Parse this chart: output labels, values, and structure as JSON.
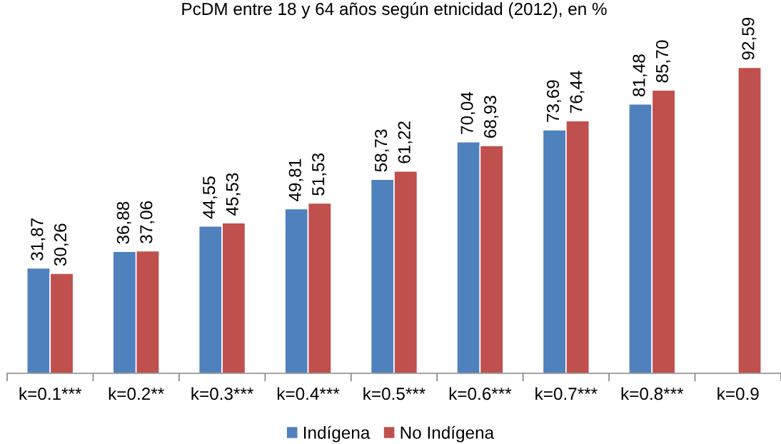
{
  "chart_data": {
    "type": "bar",
    "title": "PcDM entre 18 y 64 años según etnicidad (2012), en %",
    "categories": [
      "k=0.1***",
      "k=0.2**",
      "k=0.3***",
      "k=0.4***",
      "k=0.5***",
      "k=0.6***",
      "k=0.7***",
      "k=0.8***",
      "k=0.9"
    ],
    "series": [
      {
        "name": "Indígena",
        "color": "#4f81bd",
        "values": [
          31.87,
          36.88,
          44.55,
          49.81,
          58.73,
          70.04,
          73.69,
          81.48,
          null
        ],
        "value_labels": [
          "31,87",
          "36,88",
          "44,55",
          "49,81",
          "58,73",
          "70,04",
          "73,69",
          "81,48",
          null
        ]
      },
      {
        "name": "No Indígena",
        "color": "#c0504d",
        "values": [
          30.26,
          37.06,
          45.53,
          51.53,
          61.22,
          68.93,
          76.44,
          85.7,
          92.59
        ],
        "value_labels": [
          "30,26",
          "37,06",
          "45,53",
          "51,53",
          "61,22",
          "68,93",
          "76,44",
          "85,70",
          "92,59"
        ]
      }
    ],
    "legend": "bottom",
    "grid": false
  }
}
